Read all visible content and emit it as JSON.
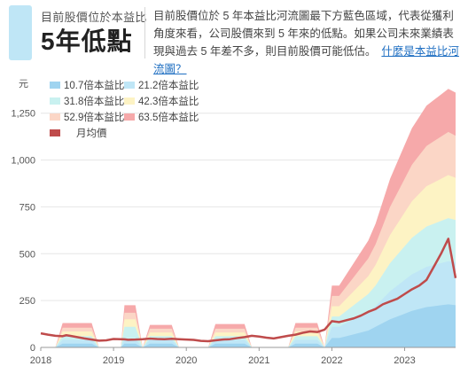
{
  "header": {
    "small_label": "目前股價位於本益比",
    "big_label": "5年低點",
    "description": "目前股價位於 5 年本益比河流圖最下方藍色區域，代表從獲利角度來看，公司股價來到 5 年來的低點。如果公司未來業績表現與過去 5 年差不多，則目前股價可能低估。",
    "link_text": "什麼是本益比河流圖？"
  },
  "chart_data": {
    "type": "area",
    "y_unit_label": "元",
    "ylim": [
      0,
      1400
    ],
    "y_ticks": [
      0,
      250,
      500,
      750,
      1000,
      1250
    ],
    "y_tick_labels": [
      "0",
      "250",
      "500",
      "750",
      "1,000",
      "1,250"
    ],
    "x_ticks": [
      "2018",
      "2019",
      "2020",
      "2021",
      "2022",
      "2023"
    ],
    "x_start": 2018.0,
    "x_end": 2023.7,
    "grid": true,
    "legend_position": "top-left",
    "legend": [
      "10.7倍本益比",
      "21.2倍本益比",
      "31.8倍本益比",
      "42.3倍本益比",
      "52.9倍本益比",
      "63.5倍本益比",
      "月均價"
    ],
    "band_colors": [
      "#9fd4f0",
      "#bfe6f6",
      "#c9f1f0",
      "#fdf3c4",
      "#fbd6c6",
      "#f6a9aa"
    ],
    "price_color": "#bf4b4b",
    "x": [
      2018.0,
      2018.1,
      2018.2,
      2018.3,
      2018.35,
      2018.4,
      2018.5,
      2018.6,
      2018.7,
      2018.8,
      2018.9,
      2019.0,
      2019.1,
      2019.15,
      2019.2,
      2019.3,
      2019.4,
      2019.5,
      2019.6,
      2019.7,
      2019.8,
      2019.9,
      2020.0,
      2020.1,
      2020.2,
      2020.3,
      2020.4,
      2020.5,
      2020.6,
      2020.7,
      2020.8,
      2020.9,
      2021.0,
      2021.1,
      2021.2,
      2021.3,
      2021.4,
      2021.5,
      2021.6,
      2021.7,
      2021.8,
      2021.9,
      2022.0,
      2022.1,
      2022.2,
      2022.3,
      2022.4,
      2022.5,
      2022.6,
      2022.7,
      2022.8,
      2022.9,
      2023.0,
      2023.1,
      2023.2,
      2023.3,
      2023.4,
      2023.5,
      2023.6,
      2023.7
    ],
    "price": [
      75,
      68,
      62,
      60,
      65,
      62,
      55,
      48,
      42,
      36,
      38,
      45,
      44,
      43,
      41,
      42,
      44,
      47,
      45,
      44,
      46,
      44,
      42,
      40,
      35,
      33,
      38,
      42,
      44,
      50,
      55,
      62,
      58,
      52,
      48,
      55,
      62,
      68,
      78,
      85,
      82,
      95,
      140,
      135,
      145,
      155,
      170,
      190,
      205,
      230,
      245,
      260,
      285,
      310,
      330,
      360,
      430,
      500,
      580,
      370
    ],
    "bands": {
      "10.7倍本益比": [
        0,
        0,
        0,
        20,
        20,
        20,
        20,
        20,
        20,
        0,
        0,
        0,
        0,
        20,
        20,
        20,
        0,
        20,
        20,
        20,
        20,
        0,
        0,
        0,
        0,
        0,
        20,
        20,
        20,
        20,
        20,
        0,
        0,
        0,
        0,
        0,
        0,
        20,
        20,
        20,
        20,
        0,
        50,
        50,
        60,
        70,
        80,
        90,
        110,
        130,
        150,
        165,
        180,
        195,
        205,
        215,
        220,
        225,
        230,
        225
      ],
      "21.2倍本益比": [
        0,
        0,
        0,
        40,
        40,
        40,
        40,
        40,
        40,
        0,
        0,
        0,
        0,
        45,
        45,
        45,
        0,
        40,
        40,
        40,
        40,
        0,
        0,
        0,
        0,
        0,
        40,
        40,
        40,
        40,
        40,
        0,
        0,
        0,
        0,
        0,
        0,
        40,
        40,
        40,
        40,
        0,
        110,
        110,
        130,
        150,
        170,
        190,
        220,
        260,
        300,
        330,
        360,
        390,
        410,
        430,
        440,
        450,
        460,
        455
      ],
      "31.8倍本益比": [
        0,
        0,
        0,
        60,
        60,
        60,
        60,
        60,
        60,
        0,
        0,
        0,
        0,
        110,
        110,
        110,
        0,
        60,
        60,
        60,
        60,
        0,
        0,
        0,
        0,
        0,
        60,
        60,
        60,
        60,
        60,
        0,
        0,
        0,
        0,
        0,
        0,
        60,
        60,
        60,
        60,
        0,
        165,
        165,
        195,
        225,
        255,
        285,
        330,
        390,
        450,
        495,
        540,
        585,
        615,
        645,
        660,
        675,
        690,
        680
      ],
      "42.3倍本益比": [
        0,
        0,
        0,
        85,
        85,
        85,
        85,
        85,
        85,
        0,
        0,
        0,
        0,
        150,
        150,
        150,
        0,
        80,
        80,
        80,
        80,
        0,
        0,
        0,
        0,
        0,
        80,
        80,
        80,
        80,
        80,
        0,
        0,
        0,
        0,
        0,
        0,
        85,
        85,
        85,
        85,
        0,
        220,
        220,
        260,
        300,
        340,
        380,
        440,
        520,
        600,
        660,
        720,
        780,
        820,
        860,
        880,
        900,
        920,
        905
      ],
      "52.9倍本益比": [
        0,
        0,
        0,
        105,
        105,
        105,
        105,
        105,
        105,
        0,
        0,
        0,
        0,
        185,
        185,
        185,
        0,
        100,
        100,
        100,
        100,
        0,
        0,
        0,
        0,
        0,
        100,
        100,
        100,
        100,
        100,
        0,
        0,
        0,
        0,
        0,
        0,
        105,
        105,
        105,
        105,
        0,
        275,
        275,
        325,
        375,
        425,
        475,
        550,
        650,
        750,
        825,
        900,
        975,
        1025,
        1075,
        1100,
        1125,
        1150,
        1130
      ],
      "63.5倍本益比": [
        0,
        0,
        0,
        130,
        130,
        130,
        130,
        130,
        130,
        0,
        0,
        0,
        0,
        225,
        225,
        225,
        0,
        120,
        120,
        120,
        120,
        0,
        0,
        0,
        0,
        0,
        125,
        125,
        125,
        125,
        125,
        0,
        0,
        0,
        0,
        0,
        0,
        130,
        130,
        130,
        130,
        0,
        330,
        330,
        390,
        450,
        510,
        570,
        660,
        780,
        900,
        990,
        1080,
        1170,
        1230,
        1290,
        1320,
        1350,
        1380,
        1360
      ]
    }
  }
}
